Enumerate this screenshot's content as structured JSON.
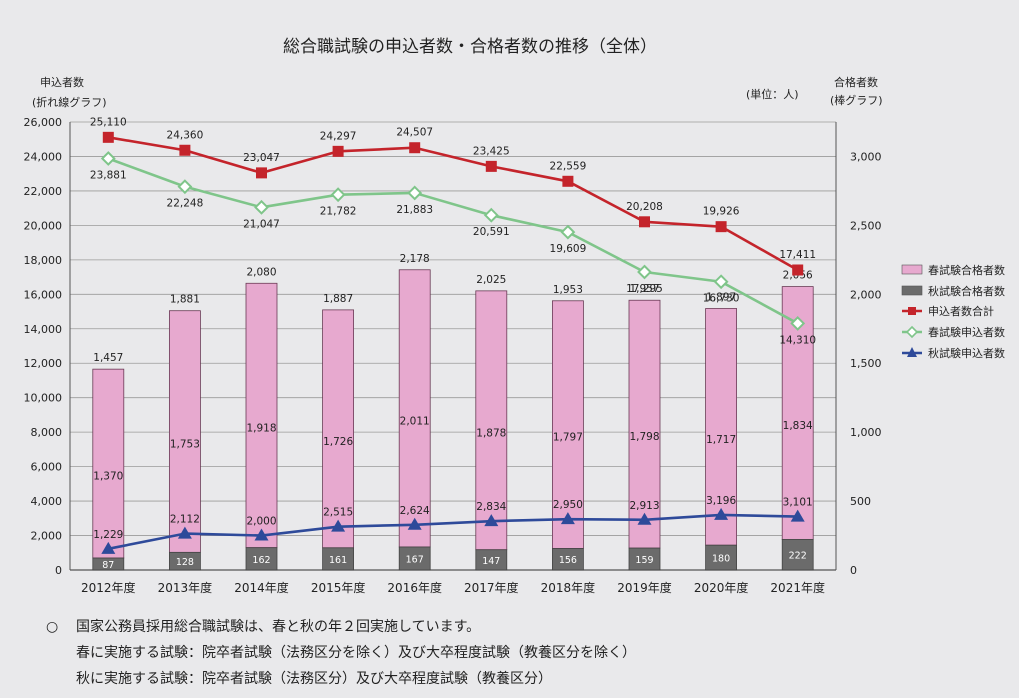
{
  "chart_data": {
    "type": "bar",
    "title": "総合職試験の申込者数・合格者数の推移（全体）",
    "left_axis": {
      "label_line1": "申込者数",
      "label_line2": "(折れ線グラフ)",
      "ylim": [
        0,
        26000
      ],
      "ticks": [
        "0",
        "2,000",
        "4,000",
        "6,000",
        "8,000",
        "10,000",
        "12,000",
        "14,000",
        "16,000",
        "18,000",
        "20,000",
        "22,000",
        "24,000",
        "26,000"
      ]
    },
    "right_axis": {
      "label_line1": "合格者数",
      "label_line2": "(棒グラフ)",
      "ylim": [
        0,
        3250
      ],
      "ticks": [
        "0",
        "500",
        "1,000",
        "1,500",
        "2,000",
        "2,500",
        "3,000"
      ]
    },
    "unit": "(単位：人)",
    "categories": [
      "2012年度",
      "2013年度",
      "2014年度",
      "2015年度",
      "2016年度",
      "2017年度",
      "2018年度",
      "2019年度",
      "2020年度",
      "2021年度"
    ],
    "bars_total": [
      1457,
      1881,
      2080,
      1887,
      2178,
      2025,
      1953,
      1957,
      1897,
      2056
    ],
    "bars_total_labels": [
      "1,457",
      "1,881",
      "2,080",
      "1,887",
      "2,178",
      "2,025",
      "1,953",
      "1,957",
      "1,897",
      "2,056"
    ],
    "bar_series": [
      {
        "name": "春試験合格者数",
        "color": "#e7a9cf",
        "values": [
          1370,
          1753,
          1918,
          1726,
          2011,
          1878,
          1797,
          1798,
          1717,
          1834
        ],
        "labels": [
          "1,370",
          "1,753",
          "1,918",
          "1,726",
          "2,011",
          "1,878",
          "1,797",
          "1,798",
          "1,717",
          "1,834"
        ]
      },
      {
        "name": "秋試験合格者数",
        "color": "#6b6b6b",
        "values": [
          87,
          128,
          162,
          161,
          167,
          147,
          156,
          159,
          180,
          222
        ],
        "labels": [
          "87",
          "128",
          "162",
          "161",
          "167",
          "147",
          "156",
          "159",
          "180",
          "222"
        ]
      }
    ],
    "line_series": [
      {
        "name": "申込者数合計",
        "color": "#c4242b",
        "marker": "square",
        "values": [
          25110,
          24360,
          23047,
          24297,
          24507,
          23425,
          22559,
          20208,
          19926,
          17411
        ],
        "labels": [
          "25,110",
          "24,360",
          "23,047",
          "24,297",
          "24,507",
          "23,425",
          "22,559",
          "20,208",
          "19,926",
          "17,411"
        ]
      },
      {
        "name": "春試験申込者数",
        "color": "#7fc58a",
        "marker": "diamond",
        "values": [
          23881,
          22248,
          21047,
          21782,
          21883,
          20591,
          19609,
          17295,
          16730,
          14310
        ],
        "labels": [
          "23,881",
          "22,248",
          "21,047",
          "21,782",
          "21,883",
          "20,591",
          "19,609",
          "17,295",
          "16,730",
          "14,310"
        ]
      },
      {
        "name": "秋試験申込者数",
        "color": "#2e4a9a",
        "marker": "triangle",
        "values": [
          1229,
          2112,
          2000,
          2515,
          2624,
          2834,
          2950,
          2913,
          3196,
          3101
        ],
        "labels": [
          "1,229",
          "2,112",
          "2,000",
          "2,515",
          "2,624",
          "2,834",
          "2,950",
          "2,913",
          "3,196",
          "3,101"
        ]
      }
    ],
    "legend": [
      "春試験合格者数",
      "秋試験合格者数",
      "申込者数合計",
      "春試験申込者数",
      "秋試験申込者数"
    ],
    "legend_position": "right",
    "grid": true
  },
  "notes": {
    "bullet": "○",
    "line1": "国家公務員採用総合職試験は、春と秋の年２回実施しています。",
    "line2": "春に実施する試験：院卒者試験（法務区分を除く）及び大卒程度試験（教養区分を除く）",
    "line3": "秋に実施する試験：院卒者試験（法務区分）及び大卒程度試験（教養区分）"
  }
}
